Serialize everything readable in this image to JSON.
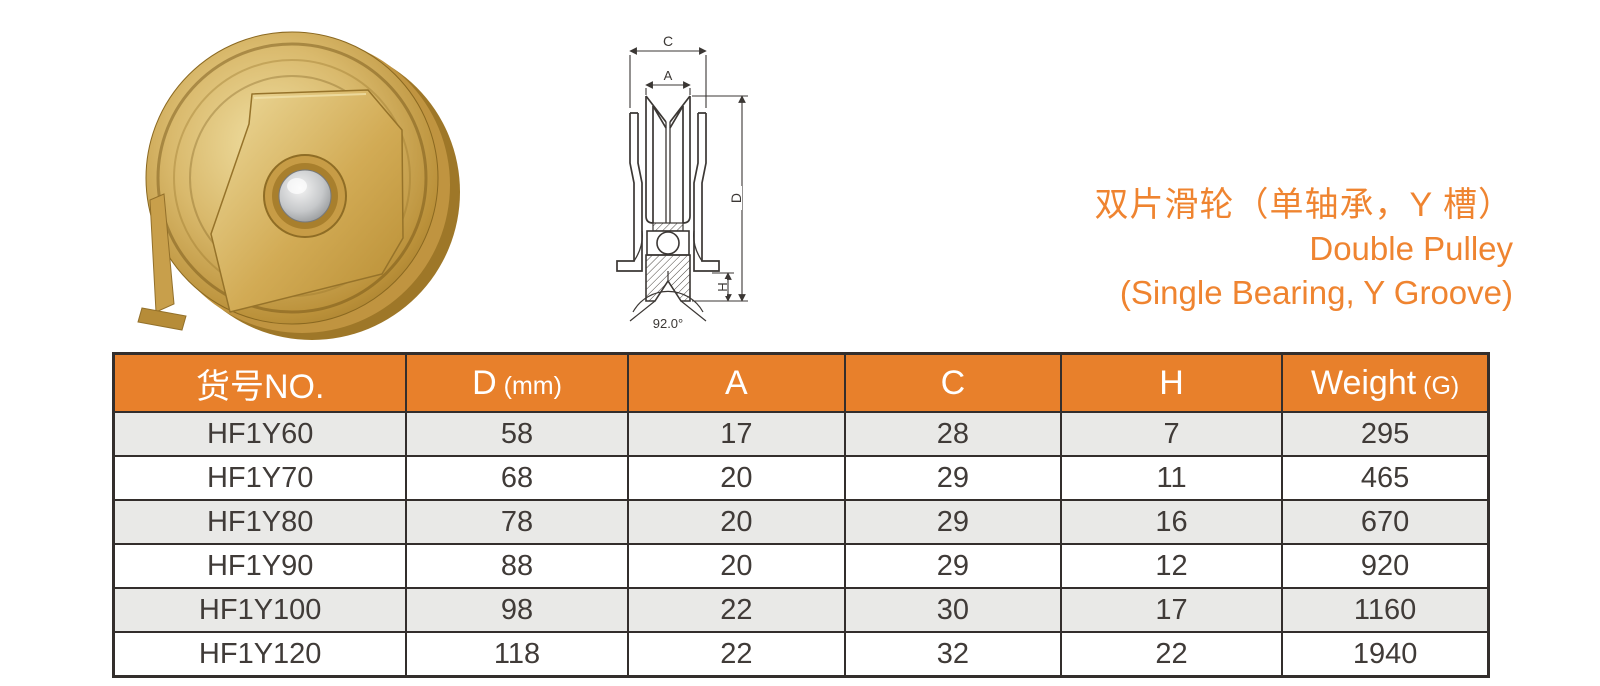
{
  "title": {
    "zh": "双片滑轮（单轴承，Y 槽）",
    "en1": "Double Pulley",
    "en2": "(Single Bearing, Y Groove)",
    "color": "#EF8430"
  },
  "photo": {
    "description": "gold zinc-plated double pulley wheel with side mounting bracket and central bearing"
  },
  "diagram": {
    "labels": {
      "c": "C",
      "a": "A",
      "d": "D",
      "h": "H",
      "angle": "92.0°"
    }
  },
  "table": {
    "header_bg": "#E8802B",
    "row_alt_bg": "#E9E9E7",
    "border_color": "#332E2C",
    "headers": [
      {
        "label": "货号NO.",
        "unit": ""
      },
      {
        "label": "D",
        "unit": "(mm)"
      },
      {
        "label": "A",
        "unit": ""
      },
      {
        "label": "C",
        "unit": ""
      },
      {
        "label": "H",
        "unit": ""
      },
      {
        "label": "Weight",
        "unit": "(G)"
      }
    ],
    "rows": [
      [
        "HF1Y60",
        "58",
        "17",
        "28",
        "7",
        "295"
      ],
      [
        "HF1Y70",
        "68",
        "20",
        "29",
        "11",
        "465"
      ],
      [
        "HF1Y80",
        "78",
        "20",
        "29",
        "16",
        "670"
      ],
      [
        "HF1Y90",
        "88",
        "20",
        "29",
        "12",
        "920"
      ],
      [
        "HF1Y100",
        "98",
        "22",
        "30",
        "17",
        "1160"
      ],
      [
        "HF1Y120",
        "118",
        "22",
        "32",
        "22",
        "1940"
      ]
    ]
  }
}
